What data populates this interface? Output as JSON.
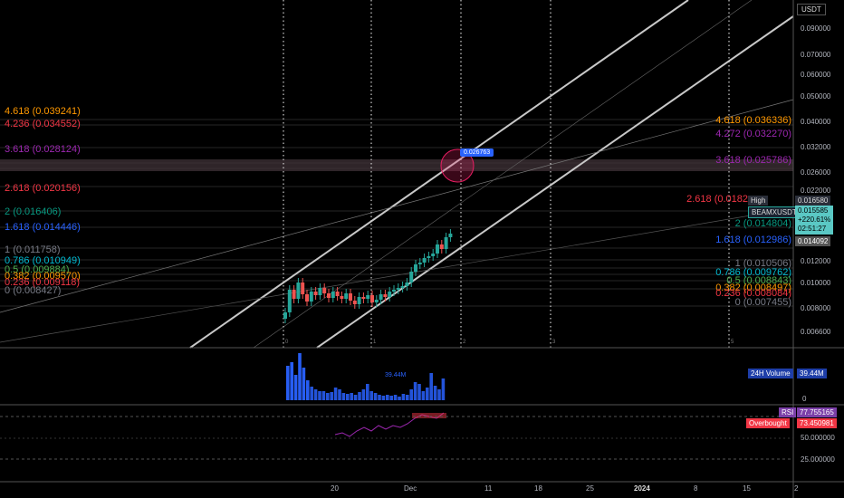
{
  "price_axis": {
    "currency": "USDT",
    "ticks": [
      "0.090000",
      "0.070000",
      "0.060000",
      "0.050000",
      "0.040000",
      "0.032000",
      "0.026000",
      "0.022000",
      "0.012000",
      "0.010000",
      "0.008000",
      "0.006600"
    ]
  },
  "fib_left": [
    {
      "ratio": "4.618",
      "price": "(0.039241)",
      "color": "#ff9800"
    },
    {
      "ratio": "4.236",
      "price": "(0.034552)",
      "color": "#f23645"
    },
    {
      "ratio": "3.618",
      "price": "(0.028124)",
      "color": "#9c27b0"
    },
    {
      "ratio": "2.618",
      "price": "(0.020156)",
      "color": "#f23645"
    },
    {
      "ratio": "2",
      "price": "(0.016406)",
      "color": "#089981"
    },
    {
      "ratio": "1.618",
      "price": "(0.014446)",
      "color": "#2962ff"
    },
    {
      "ratio": "1",
      "price": "(0.011758)",
      "color": "#787b86"
    },
    {
      "ratio": "0.786",
      "price": "(0.010949)",
      "color": "#00bcd4"
    },
    {
      "ratio": "0.5",
      "price": "(0.009884)",
      "color": "#4caf50"
    },
    {
      "ratio": "0.382",
      "price": "(0.009570)",
      "color": "#ff9800"
    },
    {
      "ratio": "0.236",
      "price": "(0.009118)",
      "color": "#f23645"
    },
    {
      "ratio": "0",
      "price": "(0.008427)",
      "color": "#787b86"
    }
  ],
  "fib_right": [
    {
      "ratio": "4.618",
      "price": "(0.036336)",
      "color": "#ff9800"
    },
    {
      "ratio": "4.272",
      "price": "(0.032270)",
      "color": "#9c27b0"
    },
    {
      "ratio": "3.618",
      "price": "(0.025786)",
      "color": "#9c27b0"
    },
    {
      "ratio": "2.618",
      "price": "(0.0182",
      "color": "#f23645"
    },
    {
      "ratio": "2",
      "price": "(0.014804)",
      "color": "#089981"
    },
    {
      "ratio": "1.618",
      "price": "(0.012986)",
      "color": "#2962ff"
    },
    {
      "ratio": "1",
      "price": "(0.010506)",
      "color": "#787b86"
    },
    {
      "ratio": "0.786",
      "price": "(0.009762)",
      "color": "#00bcd4"
    },
    {
      "ratio": "0.5",
      "price": "(0.008843)",
      "color": "#4caf50"
    },
    {
      "ratio": "0.382",
      "price": "(0.008497)",
      "color": "#ff9800"
    },
    {
      "ratio": "0.236",
      "price": "(0.008084)",
      "color": "#f23645"
    },
    {
      "ratio": "0",
      "price": "(0.007455)",
      "color": "#787b86"
    }
  ],
  "target_label": "0.026763",
  "high": {
    "label": "High",
    "value": "0.016580"
  },
  "symbol_tag": {
    "name": "BEAMXUSDT",
    "price": "0.015585",
    "change": "+220.61%",
    "countdown": "02:51:27"
  },
  "prev_tag": "0.014092",
  "volume": {
    "label": "24H Volume",
    "value": "39.44M",
    "inline": "39.44M",
    "zero": "0"
  },
  "rsi": {
    "label": "RSI",
    "value": "77.755165",
    "overbought_label": "Overbought",
    "overbought_value": "73.450981",
    "ticks": [
      "50.000000",
      "25.000000"
    ]
  },
  "vline_numbers": [
    "0",
    "1",
    "2",
    "3",
    "5"
  ],
  "dates": [
    "20",
    "Dec",
    "11",
    "18",
    "25",
    "2024",
    "8",
    "15",
    "2"
  ],
  "colors": {
    "up": "#26a69a",
    "down": "#ef5350",
    "volume": "#2962ff",
    "rsi": "#9c27b0",
    "highlight": "#e91e63"
  }
}
